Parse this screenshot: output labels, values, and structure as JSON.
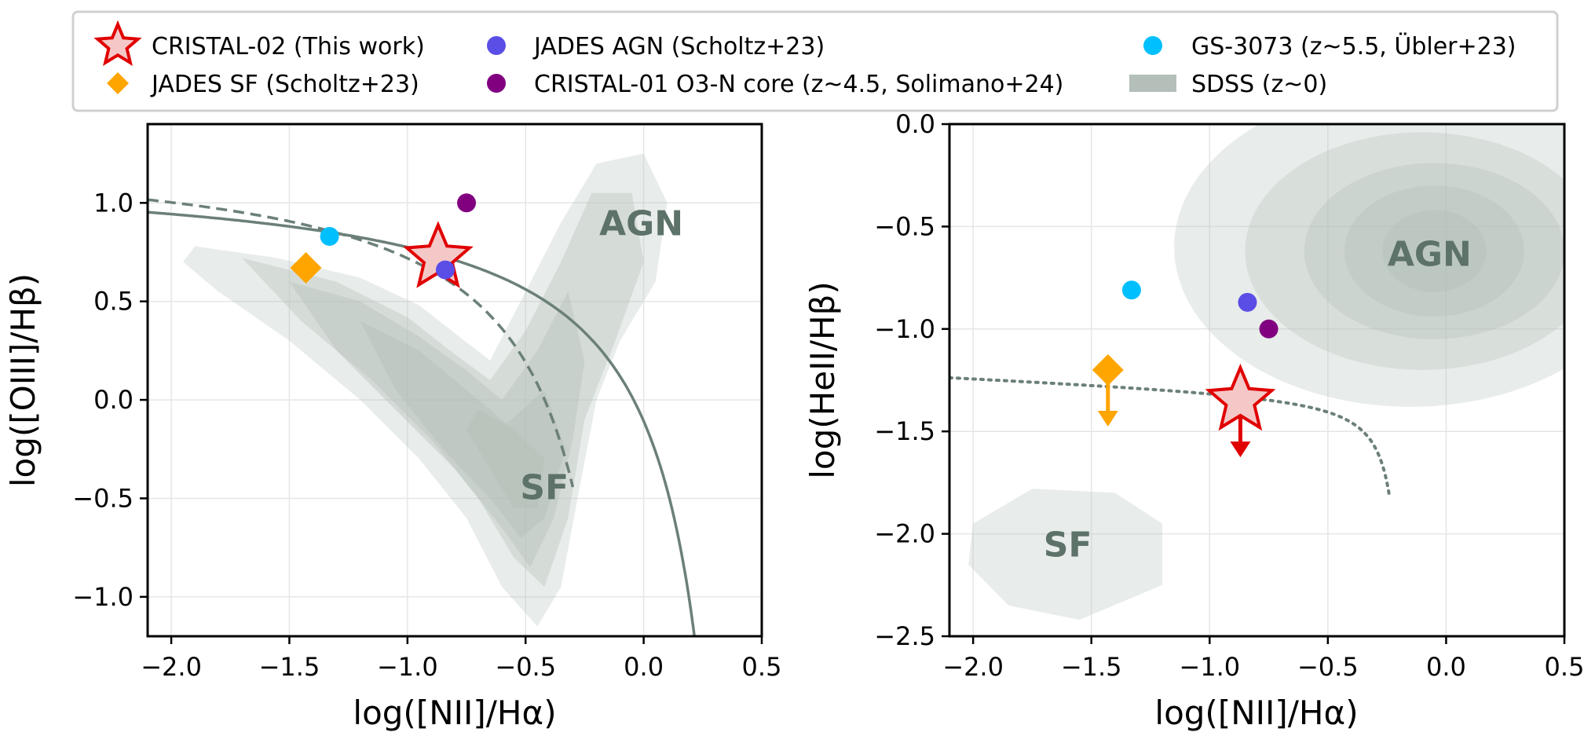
{
  "legend": {
    "entries": [
      {
        "label": "CRISTAL-02 (This work)",
        "marker": "star",
        "color": "#e00000",
        "fill": "#f5c8c8"
      },
      {
        "label": "JADES SF (Scholtz+23)",
        "marker": "diamond",
        "color": "#ffa500"
      },
      {
        "label": "JADES AGN (Scholtz+23)",
        "marker": "circle",
        "color": "#5b4ee6"
      },
      {
        "label": "CRISTAL-01 O3-N core (z~4.5, Solimano+24)",
        "marker": "circle",
        "color": "#800080"
      },
      {
        "label": "GS-3073 (z~5.5, Übler+23)",
        "marker": "circle",
        "color": "#00bfff"
      },
      {
        "label": "SDSS (z~0)",
        "marker": "patch",
        "color": "#b3bfb8"
      }
    ]
  },
  "colors": {
    "curve": "#6b8078",
    "region_text": "#5d7268",
    "sdss_base": "#b3bfb8",
    "sdss_dark": "#6e8378",
    "star_edge": "#e00000",
    "star_fill": "#f5c8c8",
    "orange": "#ffa500",
    "grid": "#e6e6e6"
  },
  "chart_data": [
    {
      "type": "scatter",
      "id": "left",
      "xlabel": "log([NII]/Hα)",
      "ylabel": "log([OIII]/Hβ)",
      "xlim": [
        -2.1,
        0.5
      ],
      "ylim": [
        -1.2,
        1.4
      ],
      "xticks": [
        -2.0,
        -1.5,
        -1.0,
        -0.5,
        0.0,
        0.5
      ],
      "xtick_labels": [
        "−2.0",
        "−1.5",
        "−1.0",
        "−0.5",
        "0.0",
        "0.5"
      ],
      "yticks": [
        -1.0,
        -0.5,
        0.0,
        0.5,
        1.0
      ],
      "ytick_labels": [
        "−1.0",
        "−0.5",
        "0.0",
        "0.5",
        "1.0"
      ],
      "grid": true,
      "region_labels": [
        {
          "text": "AGN",
          "x": -0.01,
          "y": 0.9
        },
        {
          "text": "SF",
          "x": -0.42,
          "y": -0.44
        }
      ],
      "points": [
        {
          "name": "CRISTAL-02 (This work)",
          "marker": "star",
          "x": -0.87,
          "y": 0.72
        },
        {
          "name": "JADES SF (Scholtz+23)",
          "marker": "diamond",
          "x": -1.43,
          "y": 0.67
        },
        {
          "name": "JADES AGN (Scholtz+23)",
          "marker": "circle",
          "x": -0.84,
          "y": 0.66
        },
        {
          "name": "CRISTAL-01 O3-N core (z~4.5, Solimano+24)",
          "marker": "circle",
          "x": -0.75,
          "y": 1.0
        },
        {
          "name": "GS-3073 (z~5.5, Übler+23)",
          "marker": "circle",
          "x": -1.33,
          "y": 0.83
        }
      ]
    },
    {
      "type": "scatter",
      "id": "right",
      "xlabel": "log([NII]/Hα)",
      "ylabel": "log(HeII/Hβ)",
      "xlim": [
        -2.1,
        0.5
      ],
      "ylim": [
        -2.5,
        0.0
      ],
      "xticks": [
        -2.0,
        -1.5,
        -1.0,
        -0.5,
        0.0,
        0.5
      ],
      "xtick_labels": [
        "−2.0",
        "−1.5",
        "−1.0",
        "−0.5",
        "0.0",
        "0.5"
      ],
      "yticks": [
        -2.5,
        -2.0,
        -1.5,
        -1.0,
        -0.5,
        0.0
      ],
      "ytick_labels": [
        "−2.5",
        "−2.0",
        "−1.5",
        "−1.0",
        "−0.5",
        "0.0"
      ],
      "grid": true,
      "region_labels": [
        {
          "text": "AGN",
          "x": -0.07,
          "y": -0.63
        },
        {
          "text": "SF",
          "x": -1.6,
          "y": -2.05
        }
      ],
      "points": [
        {
          "name": "CRISTAL-02 (This work)",
          "marker": "star",
          "x": -0.87,
          "y": -1.35,
          "upper_limit": true
        },
        {
          "name": "JADES SF (Scholtz+23)",
          "marker": "diamond",
          "x": -1.43,
          "y": -1.2,
          "upper_limit": true
        },
        {
          "name": "JADES AGN (Scholtz+23)",
          "marker": "circle",
          "x": -0.84,
          "y": -0.87
        },
        {
          "name": "CRISTAL-01 O3-N core (z~4.5, Solimano+24)",
          "marker": "circle",
          "x": -0.75,
          "y": -1.0
        },
        {
          "name": "GS-3073 (z~5.5, Übler+23)",
          "marker": "circle",
          "x": -1.33,
          "y": -0.81
        }
      ]
    }
  ]
}
